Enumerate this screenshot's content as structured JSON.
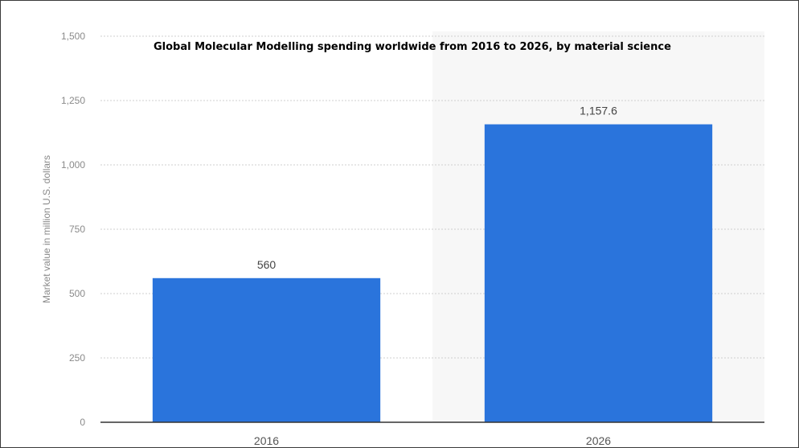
{
  "chart_data": {
    "type": "bar",
    "title": "Global Molecular Modelling spending worldwide from 2016 to 2026, by material science",
    "xlabel": "",
    "ylabel": "Market value in million U.S. dollars",
    "categories": [
      "2016",
      "2026"
    ],
    "values": [
      560,
      1157.6
    ],
    "value_labels": [
      "560",
      "1,157.6"
    ],
    "ylim": [
      0,
      1500
    ],
    "yticks": [
      0,
      250,
      500,
      750,
      1000,
      1250,
      1500
    ],
    "ytick_labels": [
      "0",
      "250",
      "500",
      "750",
      "1,000",
      "1,250",
      "1,500"
    ],
    "grid": true,
    "legend": "none",
    "colors": {
      "bar": "#2a74dc",
      "grid": "#cfcfcf",
      "axis": "#333333",
      "plot_background_right": "#f7f7f7"
    }
  }
}
